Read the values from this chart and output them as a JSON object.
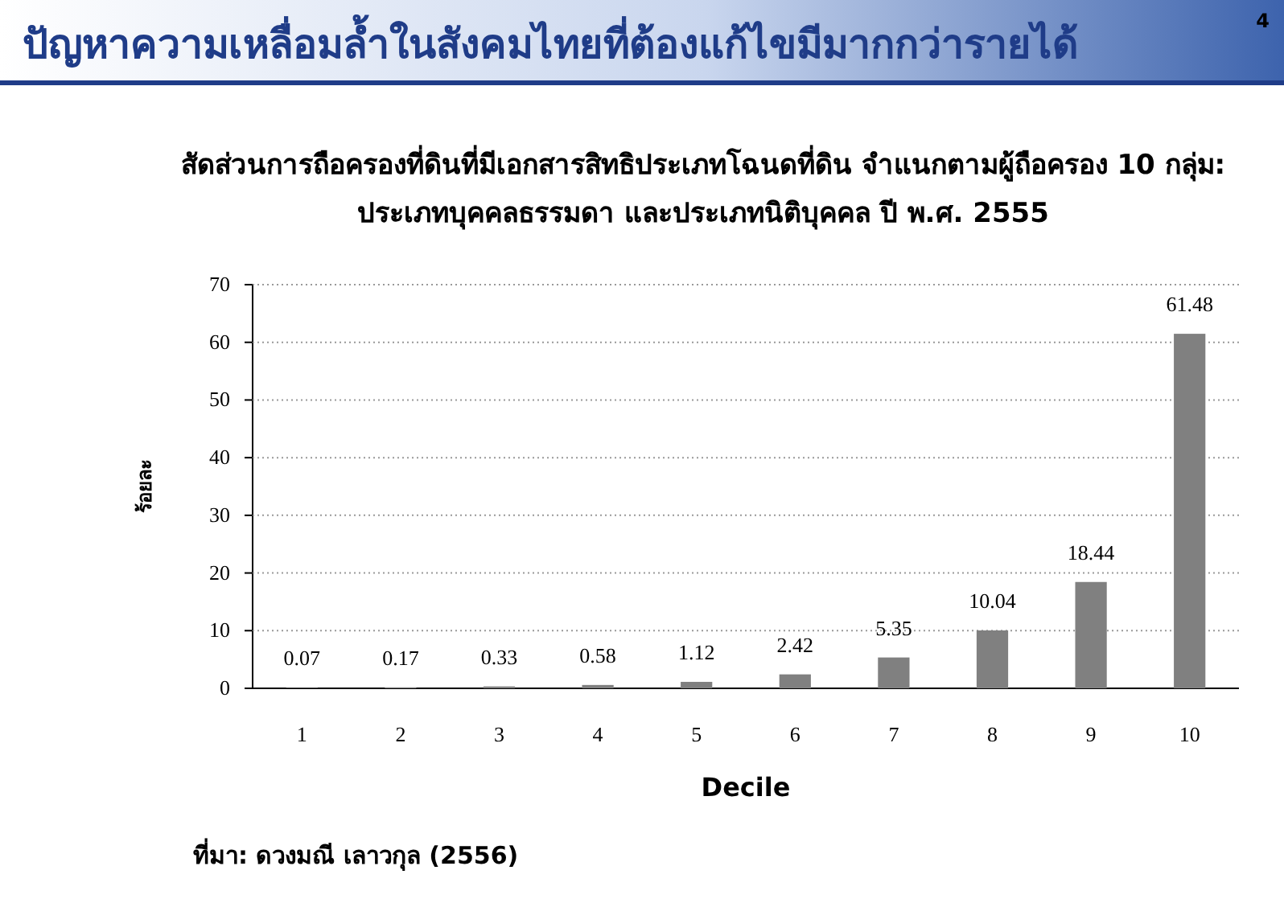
{
  "chart_data": {
    "type": "bar",
    "title": "ปัญหาความเหลื่อมล้ำในสังคมไทยที่ต้องแก้ไขมีมากกว่ารายได้",
    "subtitle": "สัดส่วนการถือครองที่ดินที่มีเอกสารสิทธิประเภทโฉนดที่ดิน จำแนกตามผู้ถือครอง 10 กลุ่ม:\nประเภทบุคคลธรรมดา และประเภทนิติบุคคล ปี พ.ศ. 2555",
    "xlabel": "Decile",
    "ylabel": "ร้อยละ",
    "annotations": [
      "4",
      "ที่มา: ดวงมณี เลาวกุล (2556)"
    ],
    "categories": [
      "1",
      "2",
      "3",
      "4",
      "5",
      "6",
      "7",
      "8",
      "9",
      "10"
    ],
    "values": [
      0.07,
      0.17,
      0.33,
      0.58,
      1.12,
      2.42,
      5.35,
      10.04,
      18.44,
      61.48
    ],
    "color": "#808080",
    "ylim": [
      0,
      70
    ],
    "yticks": [
      0,
      10,
      20,
      30,
      40,
      50,
      60,
      70
    ],
    "grid": "y",
    "data_labels": true
  }
}
